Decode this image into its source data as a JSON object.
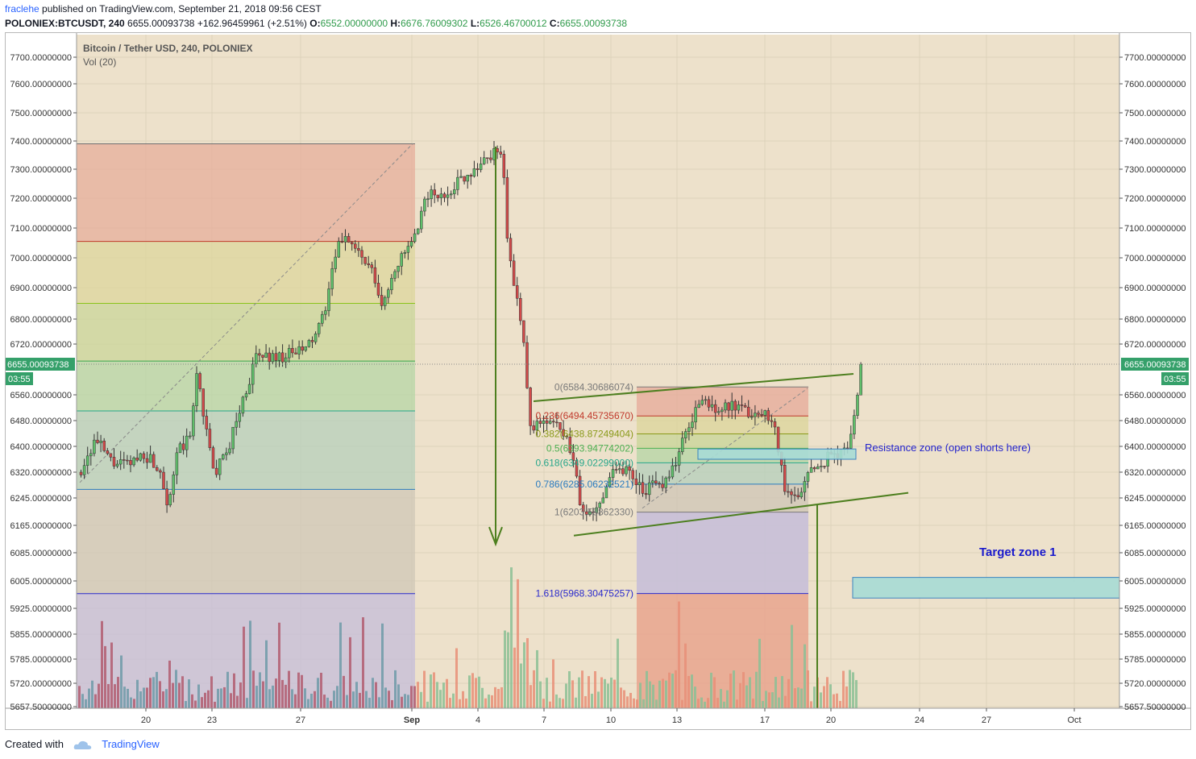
{
  "header": {
    "author": "fraclehe",
    "published_text": "published on TradingView.com, September 21, 2018 09:56 CEST",
    "symbol": "POLONIEX:BTCUSDT, 240",
    "last": "6655.00093738",
    "change": "+162.96459961 (+2.51%)",
    "o_label": "O:",
    "o_value": "6552.00000000",
    "h_label": "H:",
    "h_value": "6676.76009302",
    "l_label": "L:",
    "l_value": "6526.46700012",
    "c_label": "C:",
    "c_value": "6655.00093738"
  },
  "legend": {
    "title": "Bitcoin / Tether USD, 240, POLONIEX",
    "volume": "Vol (20)"
  },
  "footer": {
    "created_with": "Created with",
    "brand": "TradingView"
  },
  "colors": {
    "background": "#ede1cb",
    "green_text": "#2e9a4a",
    "up_candle": "#3b8a3b",
    "down_candle": "#b83a3a",
    "price_badge": "#35a06a",
    "trendline": "#4d7f1f",
    "annotation_blue": "#2222cc"
  },
  "chart_data": {
    "type": "candlestick",
    "y_ticks": [
      "7700.00000000",
      "7600.00000000",
      "7500.00000000",
      "7400.00000000",
      "7300.00000000",
      "7200.00000000",
      "7100.00000000",
      "7000.00000000",
      "6900.00000000",
      "6800.00000000",
      "6720.00000000",
      "6560.00000000",
      "6480.00000000",
      "6400.00000000",
      "6320.00000000",
      "6245.00000000",
      "6165.00000000",
      "6085.00000000",
      "6005.00000000",
      "5925.00000000",
      "5855.00000000",
      "5785.00000000",
      "5720.00000000",
      "5657.50000000"
    ],
    "x_ticks": [
      "20",
      "23",
      "27",
      "Sep",
      "4",
      "7",
      "10",
      "13",
      "17",
      "20",
      "24",
      "27",
      "Oct"
    ],
    "last_price_label": "6655.00093738",
    "countdown": "03:55",
    "fib_levels": [
      {
        "text": "0(6584.30686074)",
        "price": 6584.31,
        "color": "#7a7a7a"
      },
      {
        "text": "0.236(6494.45735670)",
        "price": 6494.46,
        "color": "#c0392b"
      },
      {
        "text": "0.382(6438.87249404)",
        "price": 6438.87,
        "color": "#8a9a1a"
      },
      {
        "text": "0.5(6393.94774202)",
        "price": 6393.95,
        "color": "#4caf50"
      },
      {
        "text": "0.618(6349.02299000)",
        "price": 6349.02,
        "color": "#26a68a"
      },
      {
        "text": "0.786(6285.06232521)",
        "price": 6285.06,
        "color": "#2a7bbf"
      },
      {
        "text": "1(6203.58862330)",
        "price": 6203.59,
        "color": "#7a7a7a"
      },
      {
        "text": "1.618(5968.30475257)",
        "price": 5968.3,
        "color": "#2a2acc"
      }
    ],
    "annotations": {
      "resistance": "Resistance zone (open shorts here)",
      "target": "Target zone 1"
    }
  }
}
